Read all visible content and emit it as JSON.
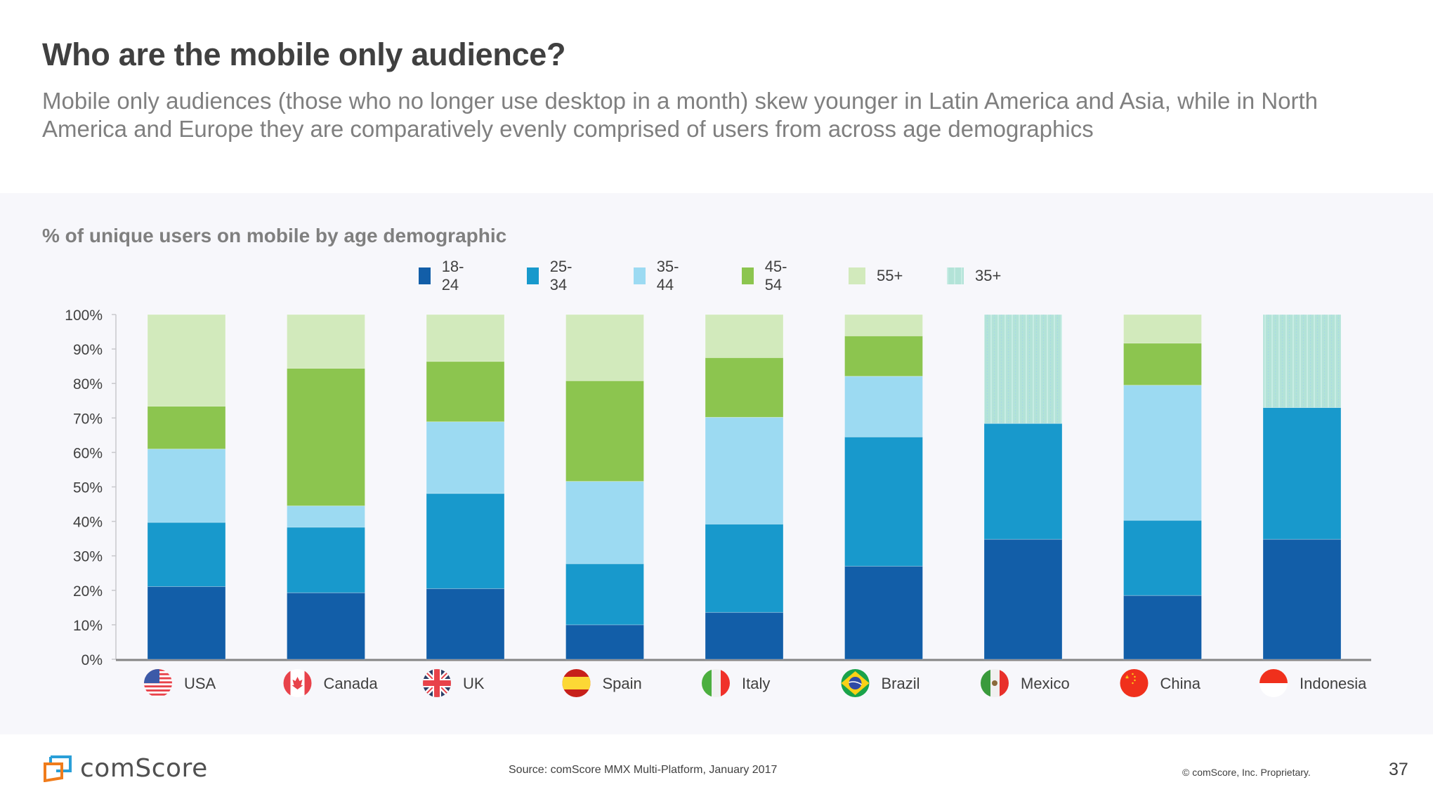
{
  "header": {
    "title": "Who are the mobile only audience?",
    "subtitle": "Mobile only audiences (those who no longer use desktop in a month) skew younger in Latin America and Asia, while in North America and Europe they are comparatively evenly comprised of users from across age demographics"
  },
  "footer": {
    "logo_text": "comScore",
    "source": "Source: comScore MMX Multi-Platform, January 2017",
    "copyright": "© comScore, Inc. Proprietary.",
    "page_number": "37"
  },
  "colors": {
    "18-24": "#125ea8",
    "25-34": "#1899cc",
    "35-44": "#9cdaf2",
    "45-54": "#8cc54f",
    "55+": "#d2eabc",
    "35+": "#b3e3d8"
  },
  "chart_data": {
    "type": "bar",
    "stacked": true,
    "title": "% of unique users on mobile by age demographic",
    "xlabel": "",
    "ylabel": "",
    "ylim": [
      0,
      100
    ],
    "y_ticks": [
      "0%",
      "10%",
      "20%",
      "30%",
      "40%",
      "50%",
      "60%",
      "70%",
      "80%",
      "90%",
      "100%"
    ],
    "legend_position": "top-center",
    "legend": [
      "18-24",
      "25-34",
      "35-44",
      "45-54",
      "55+",
      "35+"
    ],
    "categories": [
      "USA",
      "Canada",
      "UK",
      "Spain",
      "Italy",
      "Brazil",
      "Mexico",
      "China",
      "Indonesia"
    ],
    "flags": [
      "us-flag-icon",
      "canada-flag-icon",
      "uk-flag-icon",
      "spain-flag-icon",
      "italy-flag-icon",
      "brazil-flag-icon",
      "mexico-flag-icon",
      "china-flag-icon",
      "indonesia-flag-icon"
    ],
    "series": [
      {
        "name": "18-24",
        "values": [
          21.1,
          19.3,
          20.5,
          10.0,
          13.6,
          27.0,
          34.8,
          18.5,
          34.8
        ]
      },
      {
        "name": "25-34",
        "values": [
          18.6,
          19.0,
          27.6,
          17.7,
          25.6,
          37.5,
          33.6,
          21.8,
          38.2
        ]
      },
      {
        "name": "35-44",
        "values": [
          21.3,
          6.2,
          20.8,
          23.9,
          31.0,
          17.6,
          0,
          39.2,
          0
        ]
      },
      {
        "name": "45-54",
        "values": [
          12.4,
          39.9,
          17.5,
          29.2,
          17.3,
          11.7,
          0,
          12.2,
          0
        ]
      },
      {
        "name": "55+",
        "values": [
          26.6,
          15.6,
          13.6,
          19.2,
          12.5,
          6.2,
          0,
          8.3,
          0
        ]
      },
      {
        "name": "35+",
        "values": [
          0,
          0,
          0,
          0,
          0,
          0,
          31.6,
          0,
          27.0
        ]
      }
    ]
  }
}
